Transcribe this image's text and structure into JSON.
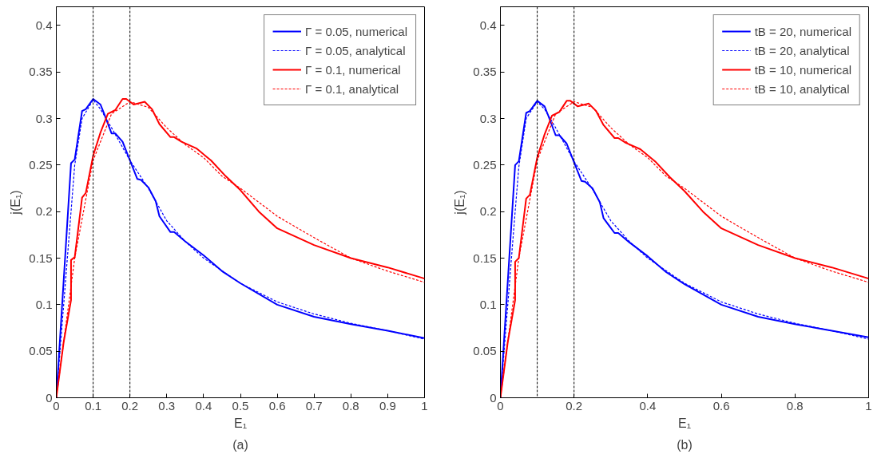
{
  "chart_data": [
    {
      "type": "line",
      "title": "(a)",
      "xlabel": "E₁",
      "ylabel": "j(E₁)",
      "xlim": [
        0,
        1
      ],
      "ylim": [
        0,
        0.42
      ],
      "xticks": [
        0,
        0.1,
        0.2,
        0.3,
        0.4,
        0.5,
        0.6,
        0.7,
        0.8,
        0.9,
        1
      ],
      "yticks": [
        0,
        0.05,
        0.1,
        0.15,
        0.2,
        0.25,
        0.3,
        0.35,
        0.4
      ],
      "grid": false,
      "legend": "top right",
      "series": [
        {
          "name": "Γ = 0.05, numerical",
          "color": "#0000ff",
          "line_style": "solid",
          "x": [
            0,
            0.04,
            0.05,
            0.07,
            0.08,
            0.1,
            0.12,
            0.13,
            0.15,
            0.16,
            0.18,
            0.2,
            0.22,
            0.23,
            0.25,
            0.27,
            0.28,
            0.31,
            0.32,
            0.35,
            0.4,
            0.45,
            0.5,
            0.6,
            0.7,
            0.8,
            0.9,
            1
          ],
          "values": [
            0,
            0.252,
            0.256,
            0.308,
            0.31,
            0.321,
            0.315,
            0.305,
            0.284,
            0.284,
            0.275,
            0.255,
            0.235,
            0.234,
            0.226,
            0.211,
            0.195,
            0.178,
            0.178,
            0.168,
            0.153,
            0.136,
            0.123,
            0.1,
            0.087,
            0.079,
            0.072,
            0.064
          ]
        },
        {
          "name": "Γ = 0.05, analytical",
          "color": "#0000ff",
          "line_style": "dashed",
          "x": [
            0,
            0.04,
            0.05,
            0.07,
            0.1,
            0.12,
            0.15,
            0.2,
            0.25,
            0.3,
            0.35,
            0.4,
            0.5,
            0.6,
            0.7,
            0.8,
            0.9,
            1
          ],
          "values": [
            0,
            0.2,
            0.25,
            0.3,
            0.32,
            0.31,
            0.29,
            0.255,
            0.225,
            0.19,
            0.168,
            0.15,
            0.123,
            0.103,
            0.09,
            0.08,
            0.072,
            0.063
          ]
        },
        {
          "name": "Γ = 0.1, numerical",
          "color": "#ff0000",
          "line_style": "solid",
          "x": [
            0,
            0.02,
            0.04,
            0.04,
            0.05,
            0.07,
            0.08,
            0.1,
            0.12,
            0.14,
            0.16,
            0.18,
            0.19,
            0.21,
            0.23,
            0.24,
            0.26,
            0.28,
            0.31,
            0.32,
            0.34,
            0.38,
            0.42,
            0.46,
            0.5,
            0.55,
            0.6,
            0.7,
            0.8,
            0.9,
            1
          ],
          "values": [
            0,
            0.06,
            0.105,
            0.148,
            0.151,
            0.215,
            0.22,
            0.26,
            0.285,
            0.305,
            0.309,
            0.321,
            0.321,
            0.315,
            0.317,
            0.318,
            0.31,
            0.294,
            0.28,
            0.28,
            0.275,
            0.268,
            0.255,
            0.238,
            0.223,
            0.2,
            0.182,
            0.164,
            0.15,
            0.14,
            0.128
          ]
        },
        {
          "name": "Γ = 0.1, analytical",
          "color": "#ff0000",
          "line_style": "dashed",
          "x": [
            0,
            0.05,
            0.1,
            0.15,
            0.2,
            0.25,
            0.3,
            0.35,
            0.4,
            0.45,
            0.5,
            0.6,
            0.7,
            0.8,
            0.9,
            1
          ],
          "values": [
            0,
            0.15,
            0.255,
            0.305,
            0.318,
            0.312,
            0.29,
            0.272,
            0.258,
            0.238,
            0.225,
            0.195,
            0.172,
            0.15,
            0.136,
            0.124
          ]
        }
      ],
      "ref_lines": [
        {
          "axis": "x",
          "value": 0.1,
          "color": "#000000",
          "line_style": "dashed"
        },
        {
          "axis": "x",
          "value": 0.2,
          "color": "#000000",
          "line_style": "dashed"
        }
      ]
    },
    {
      "type": "line",
      "title": "(b)",
      "xlabel": "E₁",
      "ylabel": "j(E₁)",
      "xlim": [
        0,
        1
      ],
      "ylim": [
        0,
        0.42
      ],
      "xticks": [
        0,
        0.2,
        0.4,
        0.6,
        0.8,
        1
      ],
      "yticks": [
        0,
        0.05,
        0.1,
        0.15,
        0.2,
        0.25,
        0.3,
        0.35,
        0.4
      ],
      "grid": false,
      "legend": "top right",
      "series": [
        {
          "name": "tB = 20, numerical",
          "color": "#0000ff",
          "line_style": "solid",
          "x": [
            0,
            0.04,
            0.05,
            0.07,
            0.08,
            0.1,
            0.12,
            0.13,
            0.15,
            0.16,
            0.18,
            0.2,
            0.22,
            0.23,
            0.25,
            0.27,
            0.28,
            0.31,
            0.32,
            0.35,
            0.4,
            0.45,
            0.5,
            0.6,
            0.7,
            0.8,
            0.9,
            1
          ],
          "values": [
            0,
            0.25,
            0.254,
            0.306,
            0.308,
            0.319,
            0.313,
            0.303,
            0.282,
            0.282,
            0.273,
            0.253,
            0.233,
            0.232,
            0.225,
            0.21,
            0.193,
            0.177,
            0.177,
            0.167,
            0.152,
            0.135,
            0.122,
            0.1,
            0.087,
            0.079,
            0.072,
            0.065
          ]
        },
        {
          "name": "tB = 20, analytical",
          "color": "#0000ff",
          "line_style": "dashed",
          "x": [
            0,
            0.04,
            0.05,
            0.07,
            0.1,
            0.12,
            0.15,
            0.2,
            0.25,
            0.3,
            0.35,
            0.4,
            0.5,
            0.6,
            0.7,
            0.8,
            0.9,
            1
          ],
          "values": [
            0,
            0.2,
            0.248,
            0.3,
            0.318,
            0.31,
            0.29,
            0.254,
            0.224,
            0.19,
            0.168,
            0.15,
            0.123,
            0.103,
            0.09,
            0.08,
            0.072,
            0.063
          ]
        },
        {
          "name": "tB = 10, numerical",
          "color": "#ff0000",
          "line_style": "solid",
          "x": [
            0,
            0.02,
            0.04,
            0.04,
            0.05,
            0.07,
            0.08,
            0.1,
            0.12,
            0.14,
            0.16,
            0.18,
            0.19,
            0.21,
            0.23,
            0.24,
            0.26,
            0.28,
            0.31,
            0.32,
            0.34,
            0.38,
            0.42,
            0.46,
            0.5,
            0.55,
            0.6,
            0.7,
            0.8,
            0.9,
            1
          ],
          "values": [
            0,
            0.06,
            0.105,
            0.146,
            0.15,
            0.214,
            0.218,
            0.258,
            0.283,
            0.303,
            0.307,
            0.319,
            0.319,
            0.313,
            0.315,
            0.316,
            0.308,
            0.293,
            0.279,
            0.279,
            0.274,
            0.267,
            0.254,
            0.237,
            0.222,
            0.2,
            0.182,
            0.164,
            0.15,
            0.14,
            0.128
          ]
        },
        {
          "name": "tB = 10, analytical",
          "color": "#ff0000",
          "line_style": "dashed",
          "x": [
            0,
            0.05,
            0.1,
            0.15,
            0.2,
            0.25,
            0.3,
            0.35,
            0.4,
            0.45,
            0.5,
            0.6,
            0.7,
            0.8,
            0.9,
            1
          ],
          "values": [
            0,
            0.15,
            0.255,
            0.305,
            0.318,
            0.312,
            0.29,
            0.272,
            0.258,
            0.238,
            0.225,
            0.195,
            0.172,
            0.15,
            0.136,
            0.124
          ]
        }
      ],
      "ref_lines": [
        {
          "axis": "x",
          "value": 0.1,
          "color": "#000000",
          "line_style": "dashed"
        },
        {
          "axis": "x",
          "value": 0.2,
          "color": "#000000",
          "line_style": "dashed"
        }
      ]
    }
  ]
}
